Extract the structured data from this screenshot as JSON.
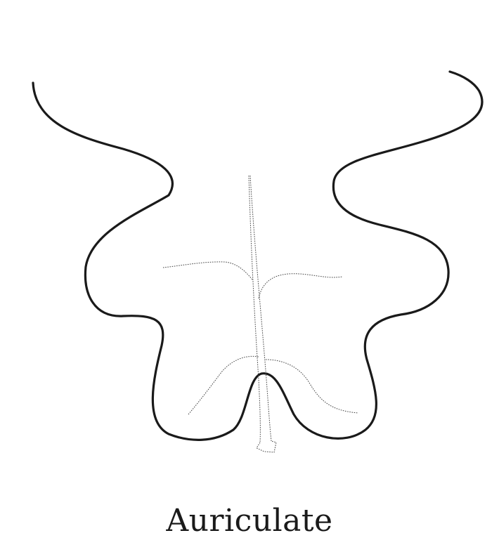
{
  "caption": "Auriculate",
  "colors": {
    "background": "#ffffff",
    "outline": "#1a1a1a",
    "vein": "#444444"
  }
}
